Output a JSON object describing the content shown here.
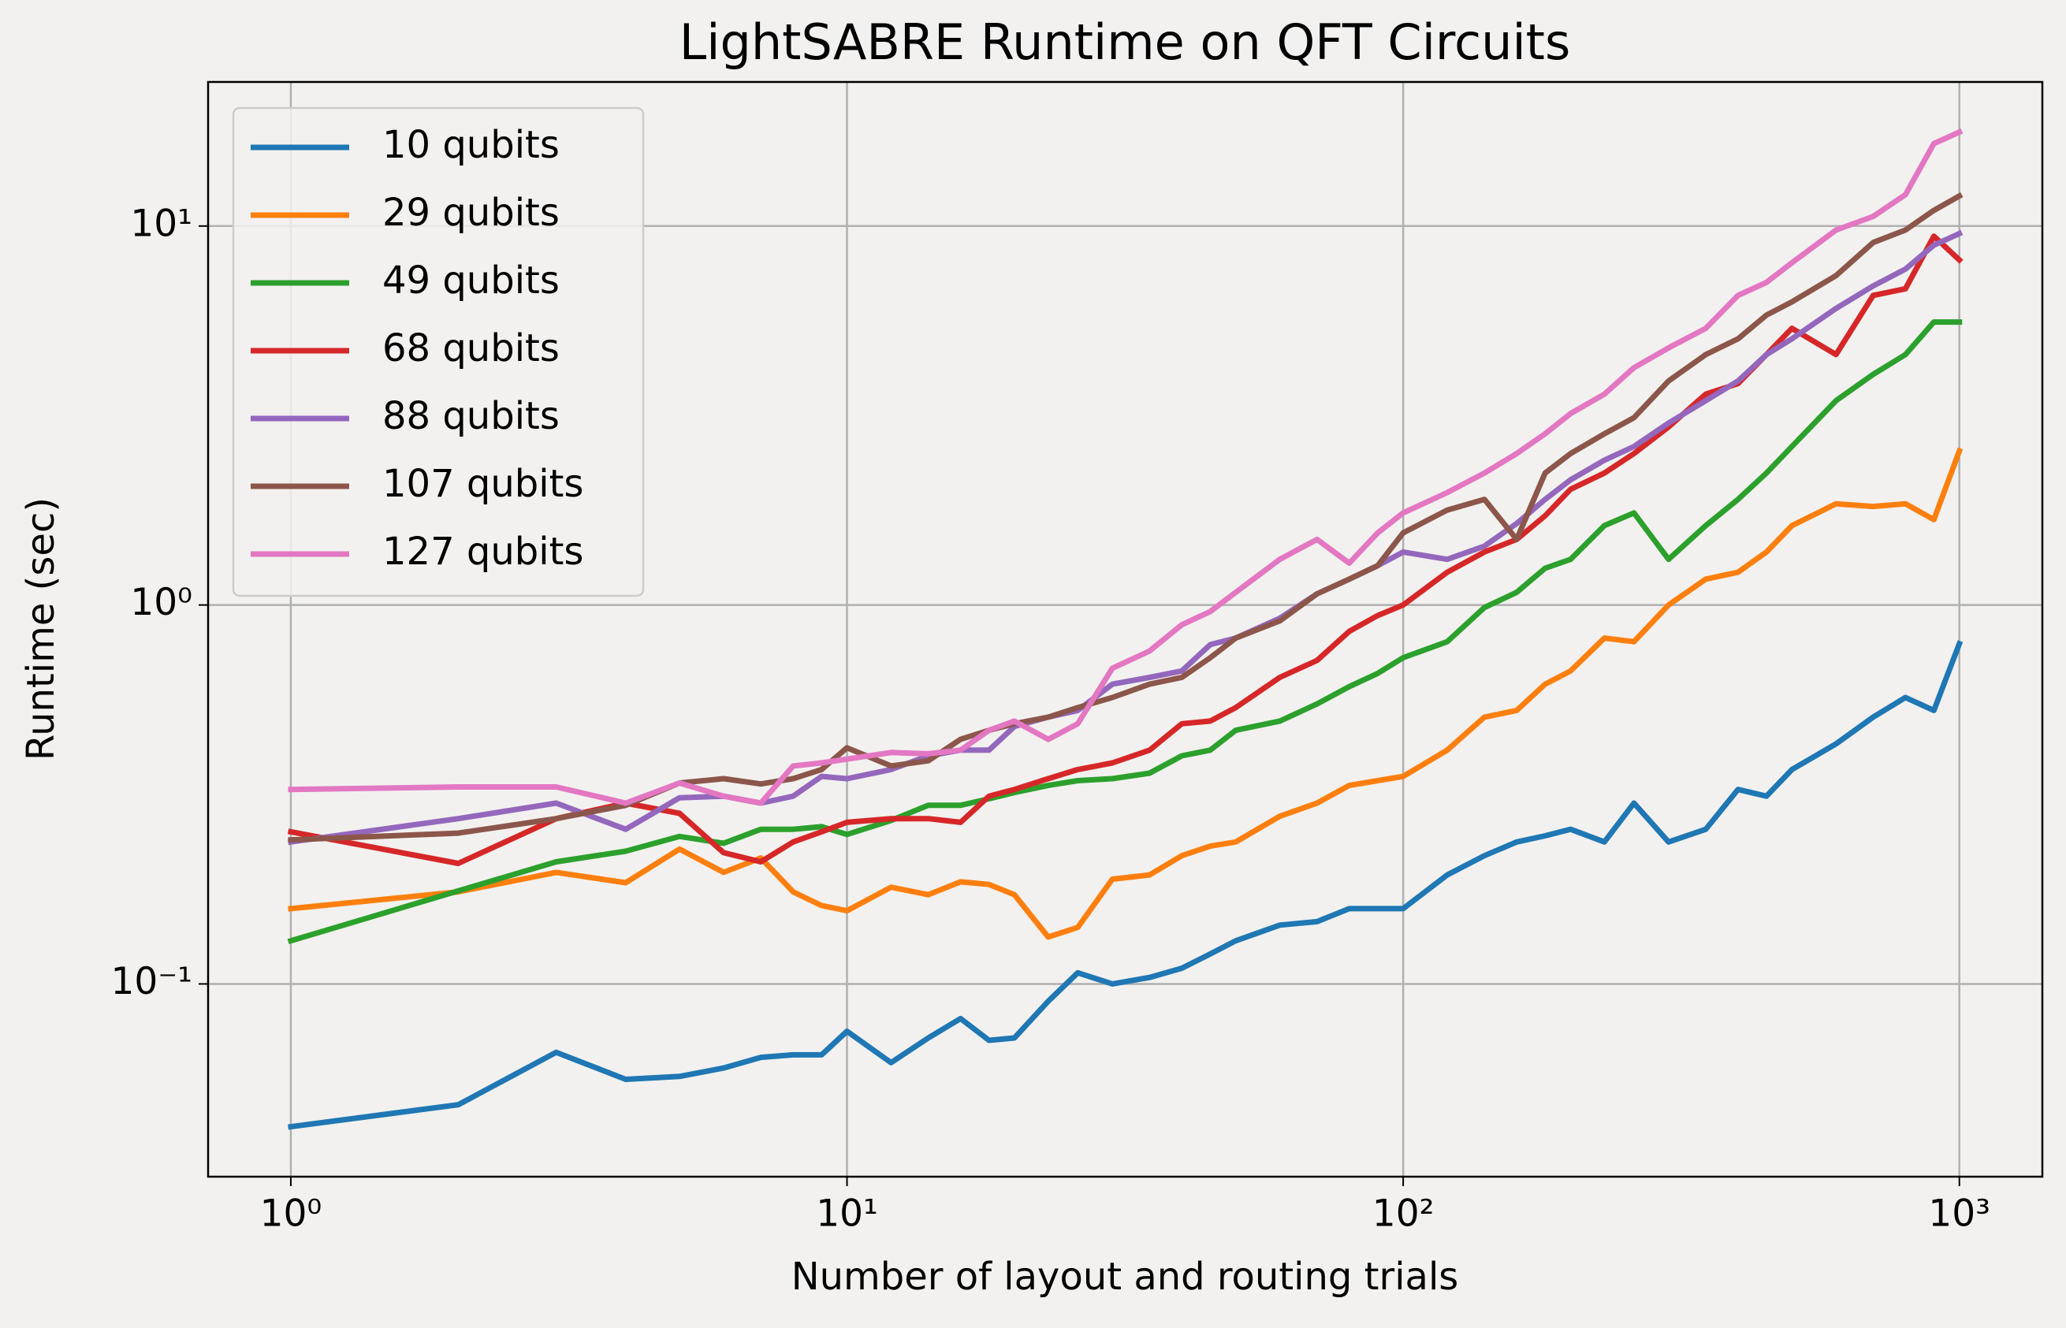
{
  "chart_data": {
    "type": "line",
    "title": "LightSABRE Runtime on QFT Circuits",
    "xlabel": "Number of layout and routing trials",
    "ylabel": "Runtime (sec)",
    "xscale": "log",
    "yscale": "log",
    "grid": true,
    "legend": "upper left",
    "xlim": [
      0.71,
      1410
    ],
    "ylim": [
      0.031,
      24
    ],
    "xticks": [
      {
        "value": 1,
        "label": "10⁰"
      },
      {
        "value": 10,
        "label": "10¹"
      },
      {
        "value": 100,
        "label": "10²"
      },
      {
        "value": 1000,
        "label": "10³"
      }
    ],
    "yticks": [
      {
        "value": 0.1,
        "label": "10⁻¹"
      },
      {
        "value": 1,
        "label": "10⁰"
      },
      {
        "value": 10,
        "label": "10¹"
      }
    ],
    "x": [
      1,
      2,
      3,
      4,
      5,
      6,
      7,
      8,
      9,
      10,
      12,
      14,
      16,
      18,
      20,
      23,
      26,
      30,
      35,
      40,
      45,
      50,
      60,
      70,
      80,
      90,
      100,
      120,
      140,
      160,
      180,
      200,
      230,
      260,
      300,
      350,
      400,
      450,
      500,
      600,
      700,
      800,
      900,
      1000
    ],
    "series": [
      {
        "name": "10 qubits",
        "color": "#1f77b4",
        "values": [
          0.042,
          0.048,
          0.066,
          0.056,
          0.057,
          0.06,
          0.064,
          0.065,
          0.065,
          0.075,
          0.062,
          0.072,
          0.081,
          0.071,
          0.072,
          0.09,
          0.107,
          0.1,
          0.104,
          0.11,
          0.12,
          0.13,
          0.143,
          0.146,
          0.158,
          0.158,
          0.158,
          0.194,
          0.218,
          0.237,
          0.246,
          0.256,
          0.237,
          0.3,
          0.237,
          0.256,
          0.326,
          0.313,
          0.368,
          0.43,
          0.506,
          0.57,
          0.527,
          0.79
        ]
      },
      {
        "name": "29 qubits",
        "color": "#ff7f0e",
        "values": [
          0.158,
          0.175,
          0.197,
          0.185,
          0.227,
          0.197,
          0.215,
          0.175,
          0.161,
          0.156,
          0.18,
          0.172,
          0.186,
          0.183,
          0.172,
          0.133,
          0.141,
          0.189,
          0.194,
          0.218,
          0.231,
          0.237,
          0.277,
          0.3,
          0.334,
          0.344,
          0.353,
          0.414,
          0.506,
          0.527,
          0.618,
          0.67,
          0.818,
          0.8,
          1.0,
          1.17,
          1.22,
          1.38,
          1.62,
          1.85,
          1.82,
          1.85,
          1.68,
          2.55
        ]
      },
      {
        "name": "49 qubits",
        "color": "#2ca02c",
        "values": [
          0.13,
          0.176,
          0.21,
          0.224,
          0.245,
          0.235,
          0.256,
          0.256,
          0.26,
          0.248,
          0.27,
          0.296,
          0.296,
          0.308,
          0.32,
          0.334,
          0.344,
          0.348,
          0.36,
          0.4,
          0.414,
          0.467,
          0.494,
          0.548,
          0.609,
          0.66,
          0.726,
          0.8,
          0.985,
          1.08,
          1.25,
          1.32,
          1.62,
          1.75,
          1.32,
          1.62,
          1.9,
          2.23,
          2.62,
          3.46,
          4.06,
          4.58,
          5.58,
          5.58
        ]
      },
      {
        "name": "68 qubits",
        "color": "#d62728",
        "values": [
          0.252,
          0.208,
          0.273,
          0.3,
          0.282,
          0.222,
          0.21,
          0.237,
          0.252,
          0.267,
          0.273,
          0.273,
          0.267,
          0.313,
          0.326,
          0.348,
          0.368,
          0.383,
          0.414,
          0.486,
          0.494,
          0.536,
          0.644,
          0.714,
          0.852,
          0.938,
          1.0,
          1.22,
          1.38,
          1.49,
          1.72,
          2.02,
          2.23,
          2.51,
          2.95,
          3.6,
          3.84,
          4.58,
          5.37,
          4.58,
          6.56,
          6.83,
          9.4,
          8.14
        ]
      },
      {
        "name": "88 qubits",
        "color": "#9467bd",
        "values": [
          0.237,
          0.273,
          0.3,
          0.256,
          0.31,
          0.313,
          0.3,
          0.313,
          0.353,
          0.348,
          0.368,
          0.4,
          0.414,
          0.414,
          0.478,
          0.506,
          0.527,
          0.618,
          0.644,
          0.67,
          0.786,
          0.818,
          0.923,
          1.07,
          1.17,
          1.27,
          1.38,
          1.32,
          1.43,
          1.64,
          1.9,
          2.14,
          2.41,
          2.62,
          3.02,
          3.46,
          3.9,
          4.58,
          5.04,
          6.06,
          6.95,
          7.7,
          8.9,
          9.55
        ]
      },
      {
        "name": "107 qubits",
        "color": "#8c564b",
        "values": [
          0.24,
          0.25,
          0.273,
          0.296,
          0.339,
          0.348,
          0.337,
          0.348,
          0.368,
          0.42,
          0.376,
          0.388,
          0.442,
          0.467,
          0.486,
          0.506,
          0.536,
          0.57,
          0.618,
          0.644,
          0.726,
          0.818,
          0.908,
          1.07,
          1.17,
          1.27,
          1.55,
          1.78,
          1.9,
          1.49,
          2.23,
          2.51,
          2.83,
          3.12,
          3.9,
          4.58,
          5.04,
          5.82,
          6.31,
          7.4,
          9.05,
          9.76,
          11.0,
          12.0
        ]
      },
      {
        "name": "127 qubits",
        "color": "#e377c2",
        "values": [
          0.326,
          0.331,
          0.331,
          0.3,
          0.339,
          0.313,
          0.3,
          0.376,
          0.383,
          0.392,
          0.408,
          0.405,
          0.414,
          0.467,
          0.494,
          0.442,
          0.486,
          0.681,
          0.756,
          0.887,
          0.961,
          1.08,
          1.32,
          1.49,
          1.29,
          1.55,
          1.75,
          1.98,
          2.23,
          2.51,
          2.83,
          3.2,
          3.6,
          4.23,
          4.77,
          5.37,
          6.56,
          7.1,
          8.0,
          9.76,
          10.6,
          12.1,
          16.5,
          17.7
        ]
      }
    ]
  }
}
